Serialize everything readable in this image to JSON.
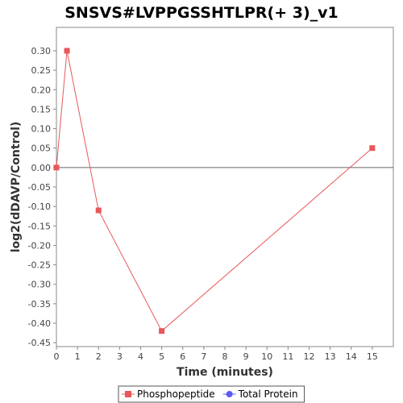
{
  "chart_data": {
    "type": "line",
    "title": "SNSVS#LVPPGSSHTLPR(+ 3)_v1",
    "xlabel": "Time (minutes)",
    "ylabel": "log2(dDAVP/Control)",
    "xlim": [
      0,
      16
    ],
    "ylim": [
      -0.46,
      0.36
    ],
    "x_ticks": [
      "0",
      "1",
      "2",
      "3",
      "4",
      "5",
      "6",
      "7",
      "8",
      "9",
      "10",
      "11",
      "12",
      "13",
      "14",
      "15"
    ],
    "y_ticks": [
      "0.30",
      "0.25",
      "0.20",
      "0.15",
      "0.10",
      "0.05",
      "0.00",
      "-0.05",
      "-0.10",
      "-0.15",
      "-0.20",
      "-0.25",
      "-0.30",
      "-0.35",
      "-0.40",
      "-0.45"
    ],
    "grid": false,
    "zero_line": true,
    "legend_position": "bottom",
    "series": [
      {
        "name": "Phosphopeptide",
        "color": "#e8575a",
        "marker": "square",
        "points": [
          {
            "x": 0,
            "y": 0.0
          },
          {
            "x": 0.5,
            "y": 0.3
          },
          {
            "x": 2,
            "y": -0.11
          },
          {
            "x": 5,
            "y": -0.42
          },
          {
            "x": 15,
            "y": 0.05
          }
        ]
      },
      {
        "name": "Total Protein",
        "color": "#5b5bf0",
        "marker": "circle",
        "points": []
      }
    ]
  }
}
